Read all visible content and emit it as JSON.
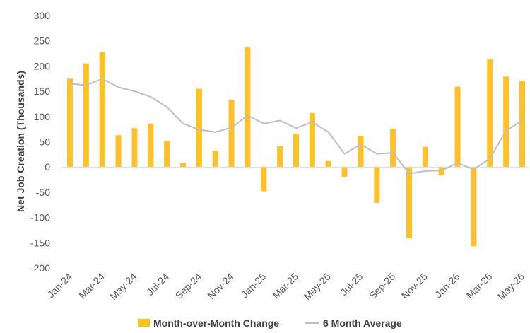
{
  "chart_data": {
    "type": "bar",
    "ylabel": "Net Job Creation (Thousands)",
    "xlabel": "",
    "ylim": [
      -200,
      300
    ],
    "yticks": [
      300,
      250,
      200,
      150,
      100,
      50,
      0,
      -50,
      -100,
      -150,
      -200
    ],
    "categories": [
      "Jan-24",
      "Feb-24",
      "Mar-24",
      "Apr-24",
      "May-24",
      "Jun-24",
      "Jul-24",
      "Aug-24",
      "Sep-24",
      "Oct-24",
      "Nov-24",
      "Dec-24",
      "Jan-25",
      "Feb-25",
      "Mar-25",
      "Apr-25",
      "May-25",
      "Jun-25",
      "Jul-25",
      "Aug-25",
      "Sep-25",
      "Oct-25",
      "Nov-25",
      "Dec-25",
      "Jan-26",
      "Feb-26",
      "Mar-26",
      "Apr-26",
      "May-26"
    ],
    "tick_labels": [
      "Jan-24",
      "Mar-24",
      "May-24",
      "Jul-24",
      "Sep-24",
      "Nov-24",
      "Jan-25",
      "Mar-25",
      "May-25",
      "Jul-25",
      "Sep-25",
      "Nov-25",
      "Jan-26",
      "Mar-26",
      "May-26"
    ],
    "series": [
      {
        "name": "Month-over-Month Change",
        "type": "bar",
        "color": "#FFC125",
        "values": [
          175,
          205,
          228,
          63,
          77,
          86,
          52,
          8,
          155,
          32,
          133,
          237,
          -48,
          41,
          66,
          107,
          12,
          -20,
          62,
          -71,
          76,
          -141,
          40,
          -17,
          159,
          -157,
          213,
          179,
          171
        ]
      },
      {
        "name": "6 Month Average",
        "type": "line",
        "color": "#BFBFBF",
        "values": [
          165,
          162,
          175,
          158,
          150,
          139,
          119,
          86,
          74,
          69,
          78,
          102,
          86,
          92,
          77,
          89,
          69,
          26,
          45,
          26,
          28,
          -13,
          -8,
          -7,
          8,
          -5,
          17,
          72,
          92
        ]
      }
    ],
    "grid": false,
    "legend_position": "bottom"
  }
}
